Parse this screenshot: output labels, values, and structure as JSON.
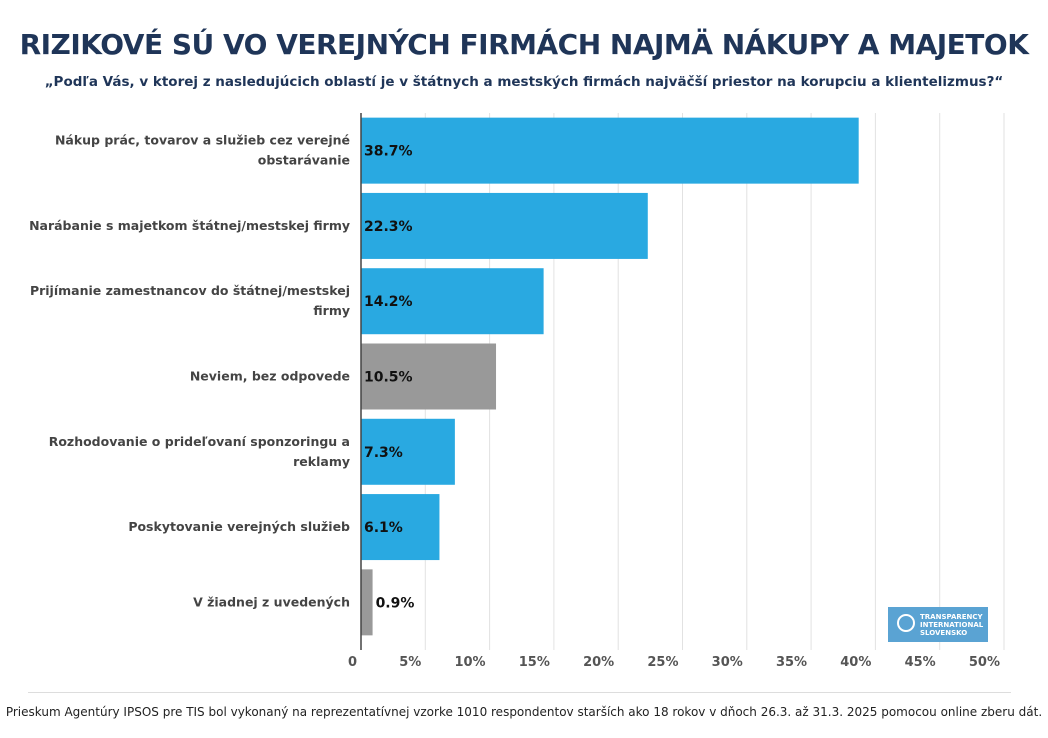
{
  "title": "RIZIKOVÉ SÚ VO VEREJNÝCH FIRMÁCH NAJMÄ NÁKUPY A MAJETOK",
  "subtitle": "„Podľa Vás, v ktorej z nasledujúcich oblastí je v štátnych a mestských firmách najväčší priestor na korupciu a klientelizmus?“",
  "footer": "Prieskum Agentúry IPSOS pre TIS bol vykonaný na reprezentatívnej vzorke 1010 respondentov starších ako 18 rokov v dňoch 26.3. až 31.3. 2025 pomocou online zberu dát.",
  "logo": {
    "text": "TRANSPARENCY INTERNATIONAL SLOVENSKO",
    "lines": [
      "TRANSPARENCY",
      "INTERNATIONAL",
      "SLOVENSKO"
    ]
  },
  "colors": {
    "primary": "#29a9e1",
    "neutral": "#999999",
    "title": "#1f3558"
  },
  "chart_data": {
    "type": "bar",
    "orientation": "horizontal",
    "categories": [
      [
        "Nákup prác, tovarov a služieb cez verejné",
        "obstarávanie"
      ],
      [
        "Narábanie s majetkom štátnej/mestskej firmy"
      ],
      [
        "Prijímanie zamestnancov do štátnej/mestskej",
        "firmy"
      ],
      [
        "Neviem, bez odpovede"
      ],
      [
        "Rozhodovanie o prideľovaní sponzoringu a",
        "reklamy"
      ],
      [
        "Poskytovanie verejných služieb"
      ],
      [
        "V žiadnej z uvedených"
      ]
    ],
    "values": [
      38.7,
      22.3,
      14.2,
      10.5,
      7.3,
      6.1,
      0.9
    ],
    "data_labels": [
      "38.7%",
      "22.3%",
      "14.2%",
      "10.5%",
      "7.3%",
      "6.1%",
      "0.9%"
    ],
    "bar_colors": [
      "#29a9e1",
      "#29a9e1",
      "#29a9e1",
      "#999999",
      "#29a9e1",
      "#29a9e1",
      "#999999"
    ],
    "xlim": [
      0,
      50
    ],
    "xticks": [
      0,
      5,
      10,
      15,
      20,
      25,
      30,
      35,
      40,
      45,
      50
    ],
    "xtick_labels": [
      "0",
      "5%",
      "10%",
      "15%",
      "20%",
      "25%",
      "30%",
      "35%",
      "40%",
      "45%",
      "50%"
    ],
    "grid": true
  }
}
